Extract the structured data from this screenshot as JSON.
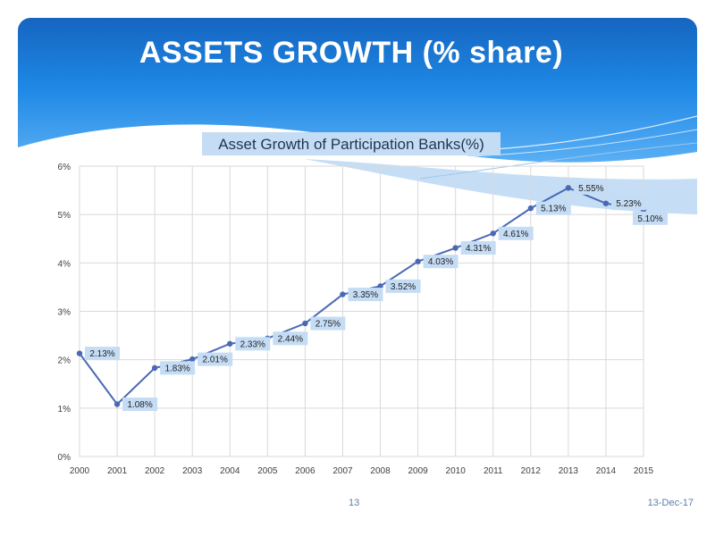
{
  "slide": {
    "title": "ASSETS GROWTH (% share)",
    "page_number": "13",
    "date": "13-Dec-17"
  },
  "colors": {
    "header_dark": "#1565c0",
    "header_light": "#64b5f6",
    "series_line": "#4a69b5",
    "label_bg": "#c5dcf5"
  },
  "chart_data": {
    "type": "line",
    "title": "Asset Growth of Participation Banks(%)",
    "x": [
      "2000",
      "2001",
      "2002",
      "2003",
      "2004",
      "2005",
      "2006",
      "2007",
      "2008",
      "2009",
      "2010",
      "2011",
      "2012",
      "2013",
      "2014",
      "2015"
    ],
    "series": [
      {
        "values": [
          2.13,
          1.08,
          1.83,
          2.01,
          2.33,
          2.44,
          2.75,
          3.35,
          3.52,
          4.03,
          4.31,
          4.61,
          5.13,
          5.55,
          5.23,
          5.1
        ],
        "data_labels": [
          "2.13%",
          "1.08%",
          "1.83%",
          "2.01%",
          "2.33%",
          "2.44%",
          "2.75%",
          "3.35%",
          "3.52%",
          "4.03%",
          "4.31%",
          "4.61%",
          "5.13%",
          "5.55%",
          "5.23%",
          "5.10%"
        ]
      }
    ],
    "ylim": [
      0,
      6
    ],
    "yticks": [
      "0%",
      "1%",
      "2%",
      "3%",
      "4%",
      "5%",
      "6%"
    ],
    "grid": true,
    "legend": "none"
  }
}
